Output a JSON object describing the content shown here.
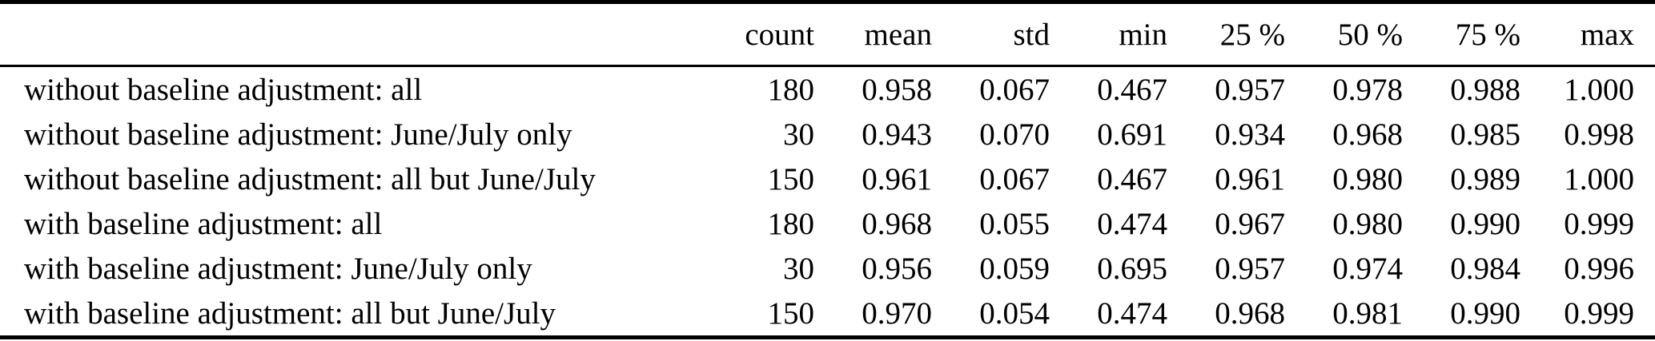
{
  "table": {
    "corner_label": "",
    "columns": [
      "count",
      "mean",
      "std",
      "min",
      "25 %",
      "50 %",
      "75 %",
      "max"
    ],
    "rows": [
      {
        "label": "without baseline adjustment: all",
        "values": [
          "180",
          "0.958",
          "0.067",
          "0.467",
          "0.957",
          "0.978",
          "0.988",
          "1.000"
        ]
      },
      {
        "label": "without baseline adjustment: June/July only",
        "values": [
          "30",
          "0.943",
          "0.070",
          "0.691",
          "0.934",
          "0.968",
          "0.985",
          "0.998"
        ]
      },
      {
        "label": "without baseline adjustment: all but June/July",
        "values": [
          "150",
          "0.961",
          "0.067",
          "0.467",
          "0.961",
          "0.980",
          "0.989",
          "1.000"
        ]
      },
      {
        "label": "with baseline adjustment: all",
        "values": [
          "180",
          "0.968",
          "0.055",
          "0.474",
          "0.967",
          "0.980",
          "0.990",
          "0.999"
        ]
      },
      {
        "label": "with baseline adjustment: June/July only",
        "values": [
          "30",
          "0.956",
          "0.059",
          "0.695",
          "0.957",
          "0.974",
          "0.984",
          "0.996"
        ]
      },
      {
        "label": "with baseline adjustment: all but June/July",
        "values": [
          "150",
          "0.970",
          "0.054",
          "0.474",
          "0.968",
          "0.981",
          "0.990",
          "0.999"
        ]
      }
    ]
  },
  "colors": {
    "background": "#ffffff",
    "text": "#000000",
    "rule": "#000000"
  }
}
